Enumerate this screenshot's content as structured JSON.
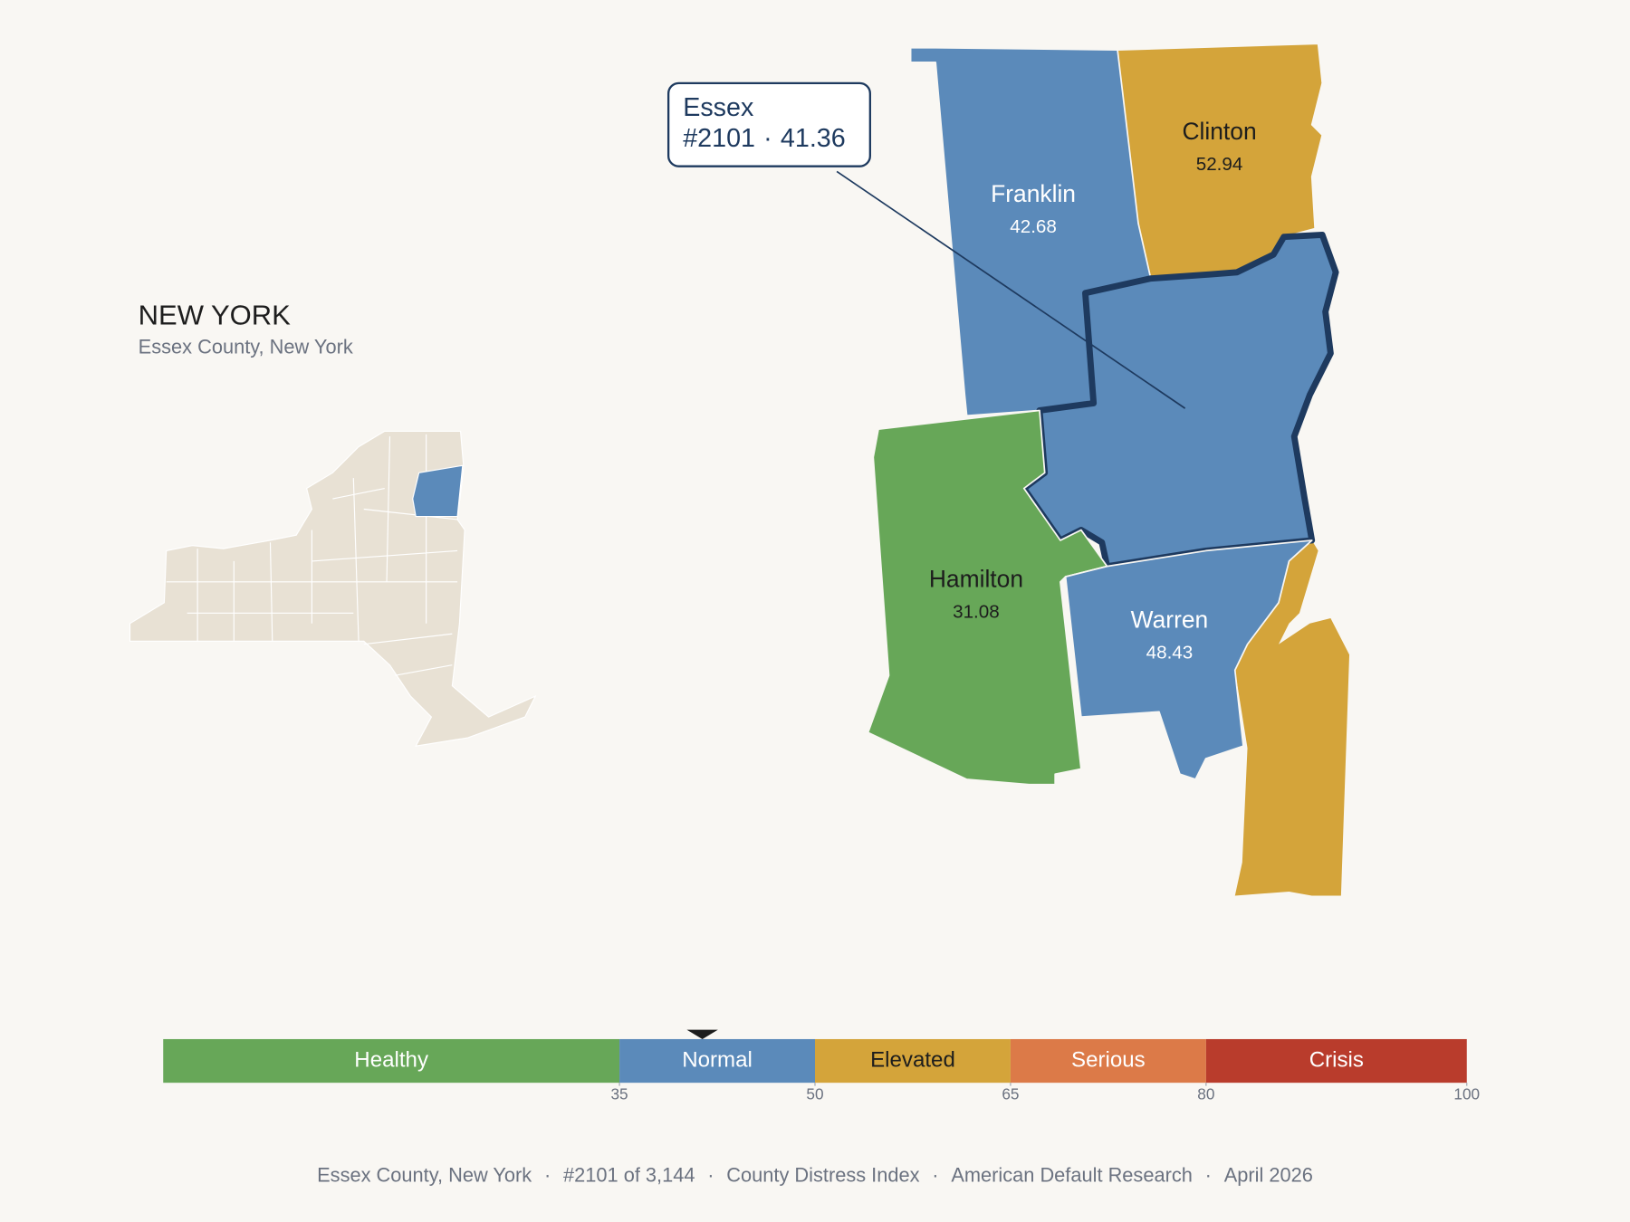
{
  "header": {
    "title": "NEW YORK",
    "subtitle": "Essex County, New York"
  },
  "counties": [
    {
      "name": "Franklin",
      "value": 42.68
    },
    {
      "name": "Clinton",
      "value": 52.94
    },
    {
      "name": "Essex",
      "value": 41.36
    },
    {
      "name": "Hamilton",
      "value": 31.08
    },
    {
      "name": "Warren",
      "value": 48.43
    }
  ],
  "tooltip": {
    "rank": "#2101",
    "separator": "·"
  },
  "scale": {
    "xlim": [
      0,
      100
    ],
    "xticks": [
      35,
      50,
      65,
      80,
      100
    ],
    "segments": [
      {
        "label": "Healthy",
        "color": "#67a758"
      },
      {
        "label": "Normal",
        "color": "#5b8aba"
      },
      {
        "label": "Elevated",
        "color": "#d4a43a"
      },
      {
        "label": "Serious",
        "color": "#dc7a48"
      },
      {
        "label": "Crisis",
        "color": "#b93c2c"
      }
    ]
  },
  "footer": {
    "items": [
      "Essex County, New York",
      "#2101 of 3,144",
      "County Distress Index",
      "American Default Research",
      "April 2026"
    ],
    "separator": "·"
  }
}
